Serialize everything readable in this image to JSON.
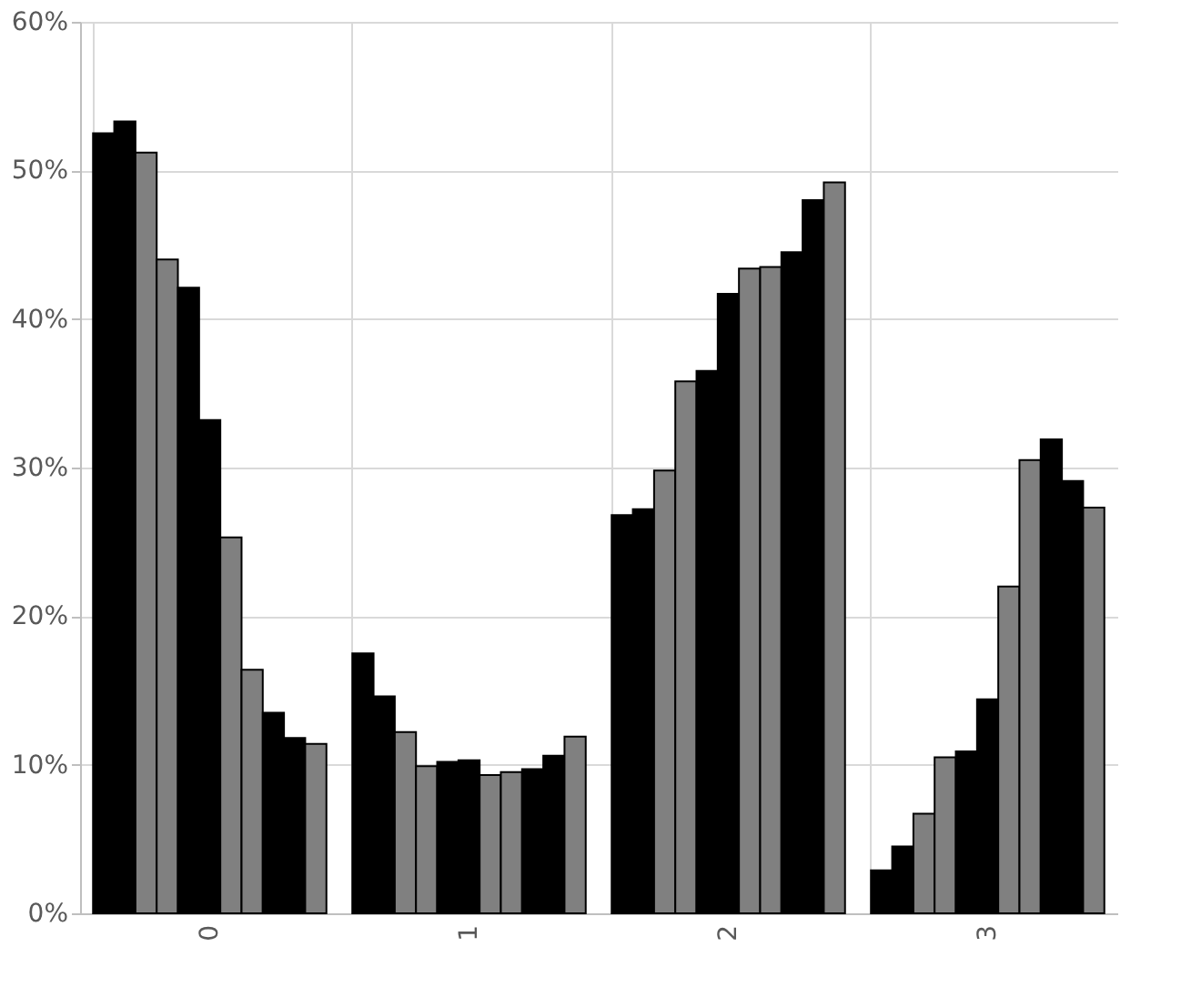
{
  "chart_data": {
    "type": "bar",
    "categories": [
      "0",
      "1",
      "2",
      "3"
    ],
    "series": [
      {
        "color": "#000000",
        "values": [
          52.5,
          17.5,
          26.8,
          2.9
        ]
      },
      {
        "color": "#000000",
        "values": [
          53.3,
          14.6,
          27.2,
          4.5
        ]
      },
      {
        "color": "#808080",
        "values": [
          51.2,
          12.2,
          29.8,
          6.7
        ]
      },
      {
        "color": "#808080",
        "values": [
          44.0,
          9.9,
          35.8,
          10.5
        ]
      },
      {
        "color": "#000000",
        "values": [
          42.1,
          10.2,
          36.5,
          10.9
        ]
      },
      {
        "color": "#000000",
        "values": [
          33.2,
          10.3,
          41.7,
          14.4
        ]
      },
      {
        "color": "#808080",
        "values": [
          25.3,
          9.3,
          43.4,
          22.0
        ]
      },
      {
        "color": "#808080",
        "values": [
          16.4,
          9.5,
          43.5,
          30.5
        ]
      },
      {
        "color": "#000000",
        "values": [
          13.5,
          9.7,
          44.5,
          31.9
        ]
      },
      {
        "color": "#000000",
        "values": [
          11.8,
          10.6,
          48.0,
          29.1
        ]
      },
      {
        "color": "#808080",
        "values": [
          11.4,
          11.9,
          49.2,
          27.3
        ]
      }
    ],
    "ylim": [
      0,
      60
    ],
    "yticks": [
      {
        "value": 0,
        "label": "0%"
      },
      {
        "value": 10,
        "label": "10%"
      },
      {
        "value": 20,
        "label": "20%"
      },
      {
        "value": 30,
        "label": "30%"
      },
      {
        "value": 40,
        "label": "40%"
      },
      {
        "value": 50,
        "label": "50%"
      },
      {
        "value": 60,
        "label": "60%"
      }
    ],
    "grid": true,
    "legend": false
  }
}
